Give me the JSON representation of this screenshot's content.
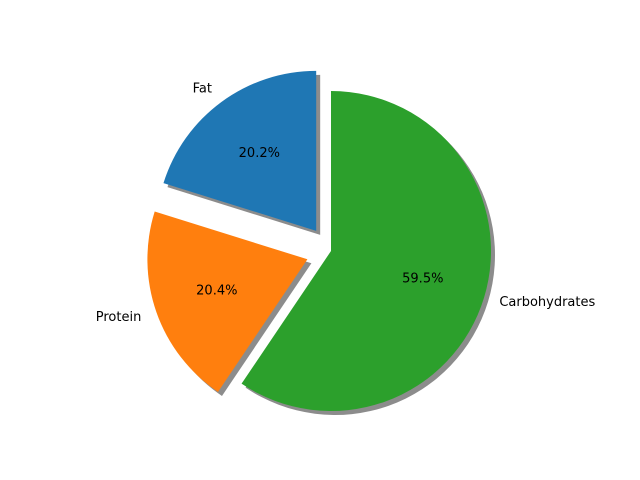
{
  "chart_data": {
    "type": "pie",
    "title": "",
    "categories": [
      "Fat",
      "Protein",
      "Carbohydrates"
    ],
    "values": [
      20.2,
      20.4,
      59.5
    ],
    "value_labels": [
      "20.2%",
      "20.4%",
      "59.5%"
    ],
    "colors": [
      "#1f77b4",
      "#ff7f0e",
      "#2ca02c"
    ],
    "exploded": [
      true,
      true,
      false
    ],
    "shadow": true,
    "legend": "none"
  }
}
